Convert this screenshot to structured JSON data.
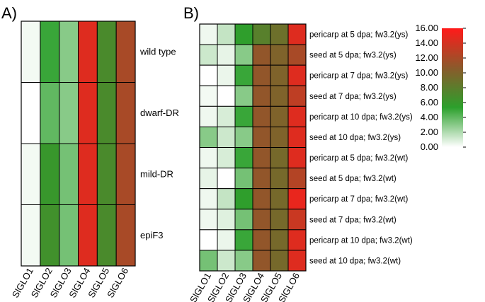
{
  "chart_data": [
    {
      "panel_label": "A)",
      "type": "heatmap",
      "columns": [
        "SlGLO1",
        "SlGLO2",
        "SlGLO3",
        "SlGLO4",
        "SlGLO5",
        "SlGLO6"
      ],
      "rows": [
        "wild type",
        "dwarf-DR",
        "mild-DR",
        "epiF3"
      ],
      "values": [
        [
          0.3,
          5.0,
          3.0,
          14.5,
          7.0,
          12.0
        ],
        [
          0.0,
          4.0,
          3.0,
          14.5,
          7.0,
          12.0
        ],
        [
          0.3,
          6.0,
          3.5,
          14.5,
          7.0,
          12.0
        ],
        [
          0.3,
          6.5,
          3.5,
          14.5,
          7.0,
          12.0
        ]
      ]
    },
    {
      "panel_label": "B)",
      "type": "heatmap",
      "columns": [
        "SlGLO1",
        "SlGLO2",
        "SlGLO3",
        "SlGLO4",
        "SlGLO5",
        "SlGLO6"
      ],
      "rows": [
        "pericarp at 5 dpa; fw3.2(ys)",
        "seed at 5 dpa; fw3.2(ys)",
        "pericarp at 7 dpa; fw3.2(ys)",
        "seed at 7 dpa; fw3.2(ys)",
        "pericarp at 10 dpa; fw3.2(ys)",
        "seed at 10 dpa; fw3.2(ys)",
        "pericarp at 5 dpa; fw3.2(wt)",
        "seed at 5 dpa; fw3.2(wt)",
        "pericarp at 7 dpa; fw3.2(wt)",
        "seed at 7 dpa; fw3.2(wt)",
        "pericarp at 10 dpa; fw3.2(wt)",
        "seed at 10 dpa; fw3.2(wt)"
      ],
      "values": [
        [
          0.4,
          1.5,
          5.5,
          7.8,
          9.0,
          14.5
        ],
        [
          1.3,
          0.6,
          3.0,
          11.0,
          10.0,
          12.0
        ],
        [
          0.0,
          0.5,
          5.0,
          11.0,
          10.0,
          14.5
        ],
        [
          0.3,
          0.0,
          3.0,
          11.0,
          10.0,
          13.0
        ],
        [
          0.4,
          1.0,
          5.0,
          11.0,
          10.0,
          14.5
        ],
        [
          3.0,
          1.3,
          3.0,
          11.0,
          10.0,
          14.5
        ],
        [
          0.4,
          1.0,
          5.0,
          11.0,
          9.5,
          14.5
        ],
        [
          0.6,
          0.0,
          3.5,
          11.0,
          9.5,
          12.5
        ],
        [
          0.4,
          1.5,
          5.5,
          11.0,
          9.5,
          15.0
        ],
        [
          0.4,
          0.8,
          3.5,
          11.0,
          9.5,
          13.5
        ],
        [
          0.0,
          0.5,
          5.0,
          11.0,
          9.5,
          14.5
        ],
        [
          3.5,
          1.3,
          3.0,
          11.0,
          9.5,
          14.5
        ]
      ]
    }
  ],
  "colorbar": {
    "ticks": [
      "0.00",
      "2.00",
      "4.00",
      "6.00",
      "8.00",
      "10.00",
      "12.00",
      "14.00",
      "16.00"
    ],
    "range": [
      0,
      16
    ],
    "colors": [
      "#ffffff",
      "#2ca02c",
      "#8b5a2b",
      "#ff1a1a"
    ]
  }
}
